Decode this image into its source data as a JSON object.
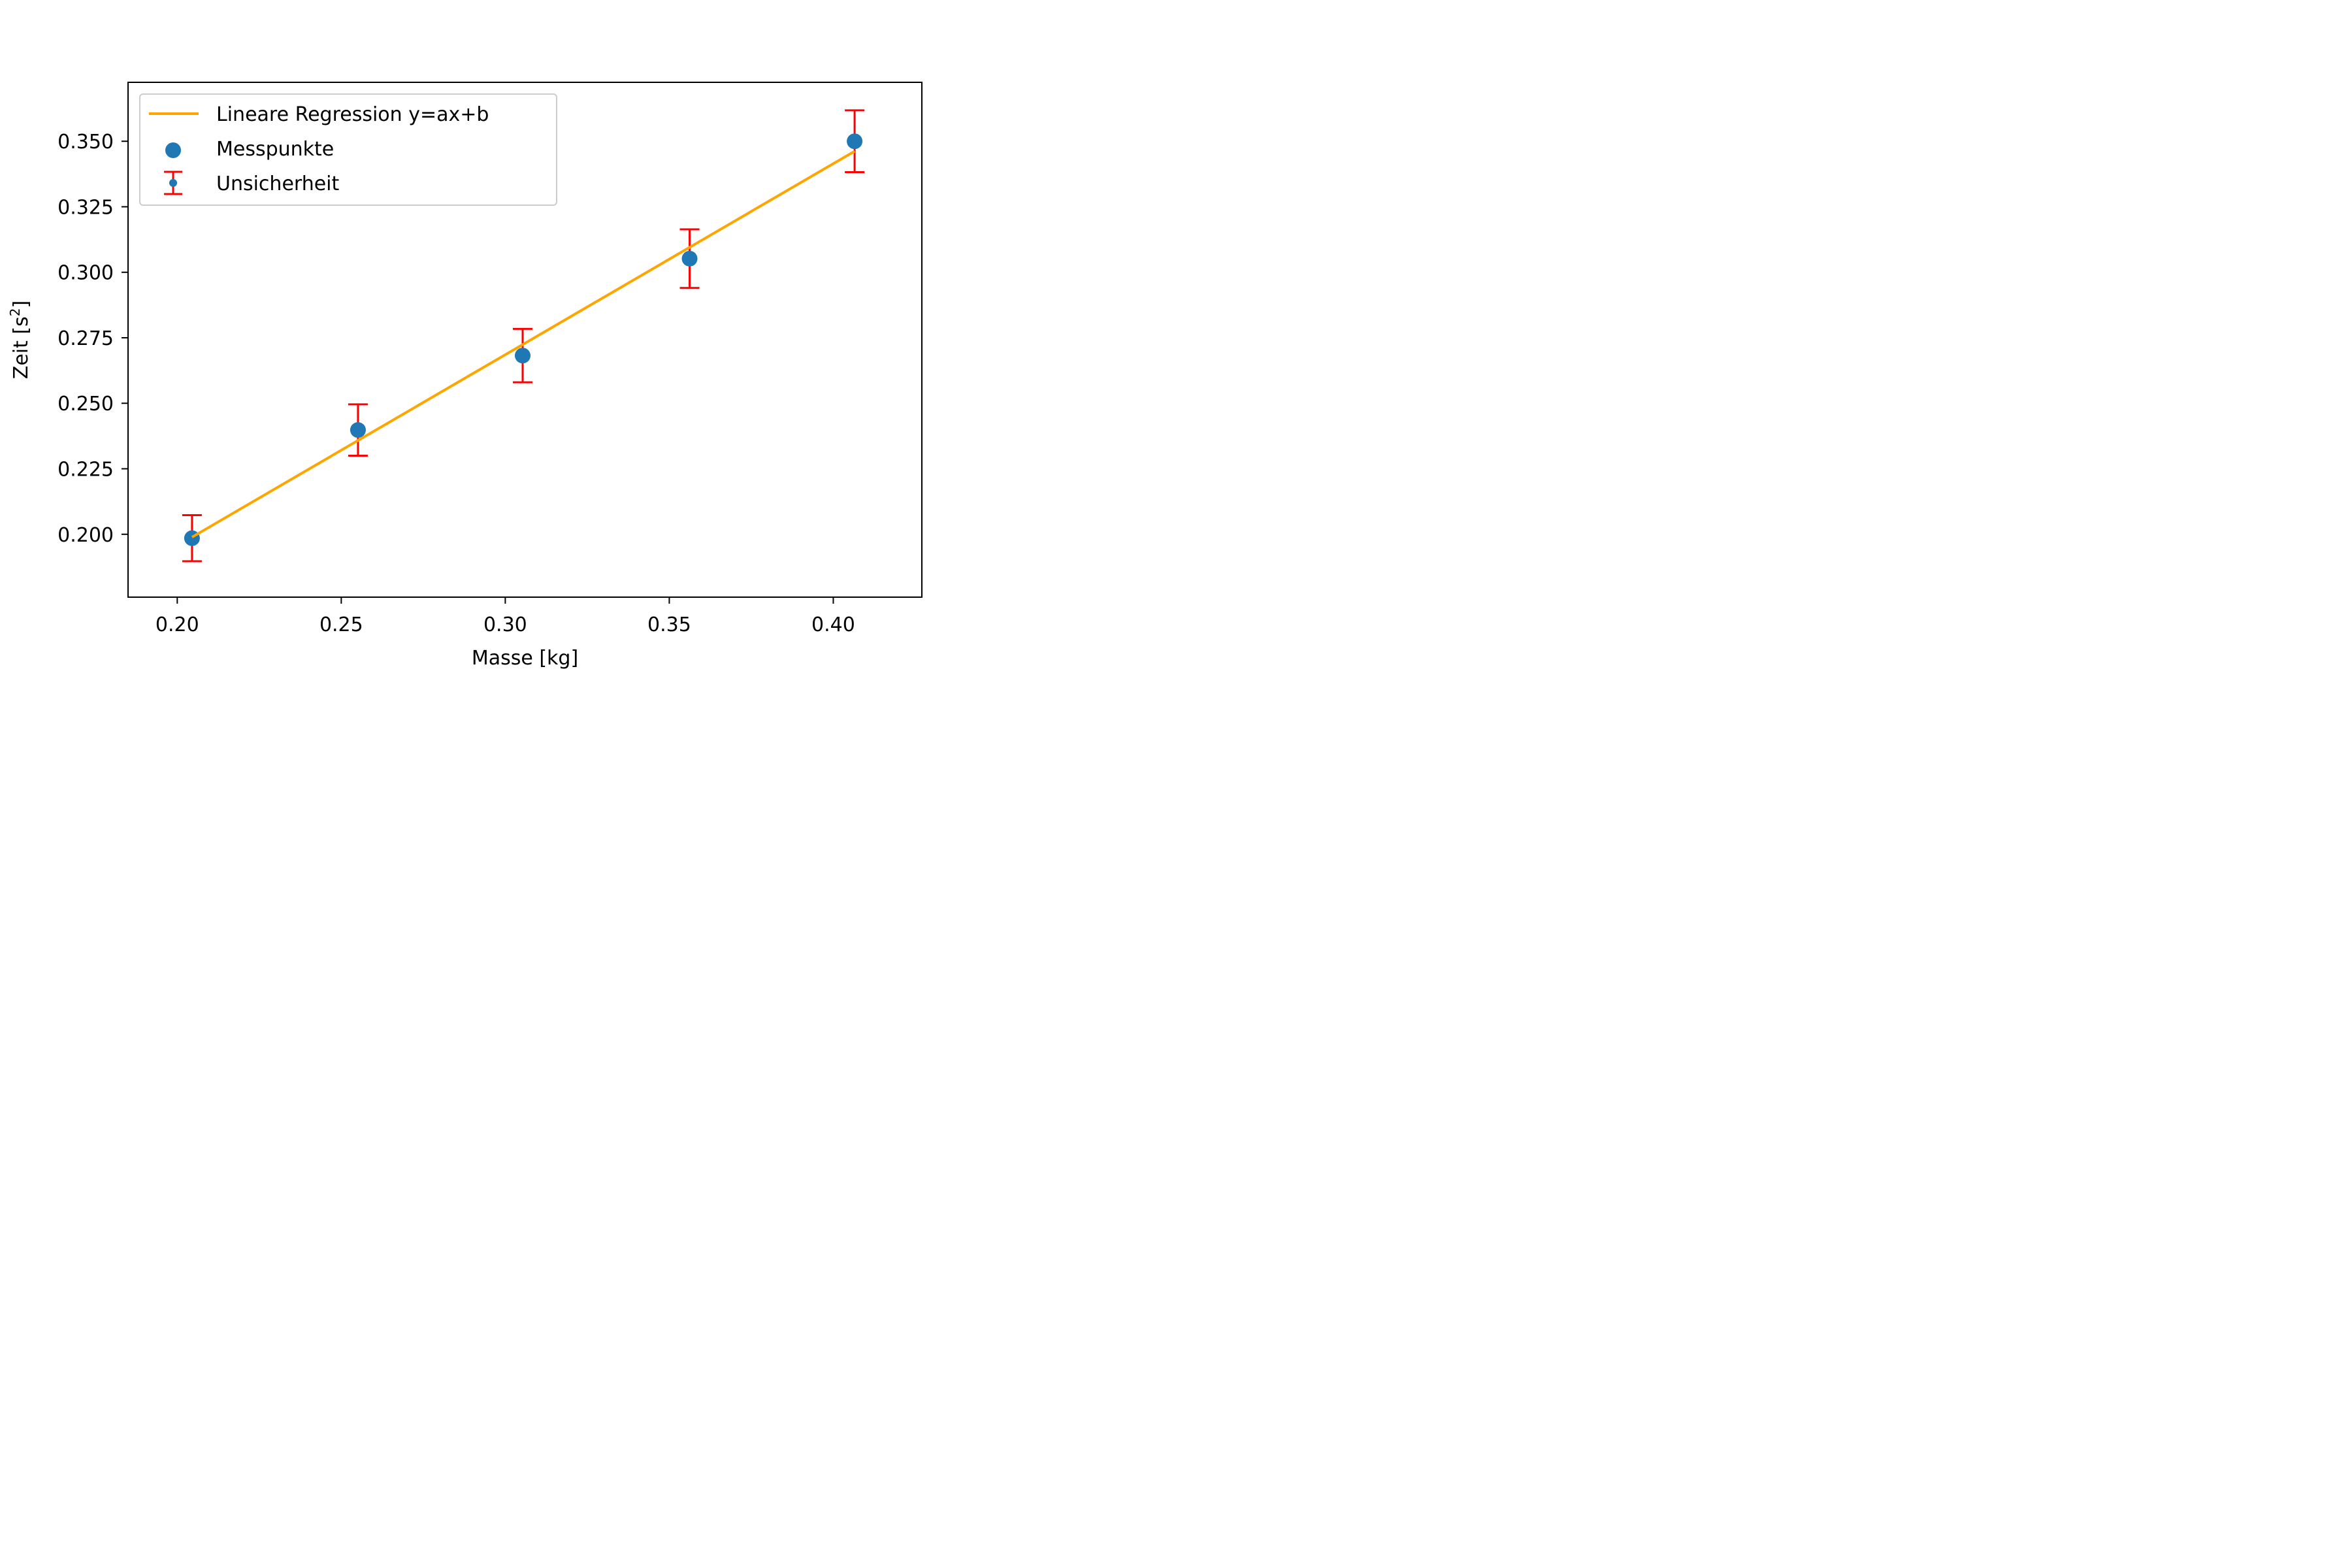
{
  "chart_data": {
    "type": "scatter",
    "xlabel": "Masse [kg]",
    "ylabel": "Zeit [s",
    "ylabel_superscript": "2",
    "ylabel_suffix": "]",
    "xlim": [
      0.185,
      0.427
    ],
    "ylim": [
      0.176,
      0.3725
    ],
    "x_ticks": [
      0.2,
      0.25,
      0.3,
      0.35,
      0.4
    ],
    "x_tick_labels": [
      "0.20",
      "0.25",
      "0.30",
      "0.35",
      "0.40"
    ],
    "y_ticks": [
      0.2,
      0.225,
      0.25,
      0.275,
      0.3,
      0.325,
      0.35
    ],
    "y_tick_labels": [
      "0.200",
      "0.225",
      "0.250",
      "0.275",
      "0.300",
      "0.325",
      "0.350"
    ],
    "grid": false,
    "legend_position": "top-left",
    "series": [
      {
        "name": "Lineare Regression y=ax+b",
        "kind": "line",
        "color": "#ffa500",
        "x": [
          0.2045,
          0.4065
        ],
        "y": [
          0.1989,
          0.3462
        ]
      },
      {
        "name": "Messpunkte",
        "kind": "scatter",
        "color": "#1f77b4",
        "x": [
          0.2045,
          0.2551,
          0.3053,
          0.3562,
          0.4065
        ],
        "y": [
          0.1985,
          0.2398,
          0.2682,
          0.3052,
          0.35
        ]
      },
      {
        "name": "Unsicherheit",
        "kind": "errorbar",
        "color": "#ff0000",
        "x": [
          0.2045,
          0.2551,
          0.3053,
          0.3562,
          0.4065
        ],
        "y": [
          0.1985,
          0.2398,
          0.2682,
          0.3052,
          0.35
        ],
        "yerr_low": [
          0.0088,
          0.0098,
          0.0102,
          0.0112,
          0.0118
        ],
        "yerr_high": [
          0.0088,
          0.0098,
          0.0102,
          0.0112,
          0.0118
        ]
      }
    ]
  }
}
